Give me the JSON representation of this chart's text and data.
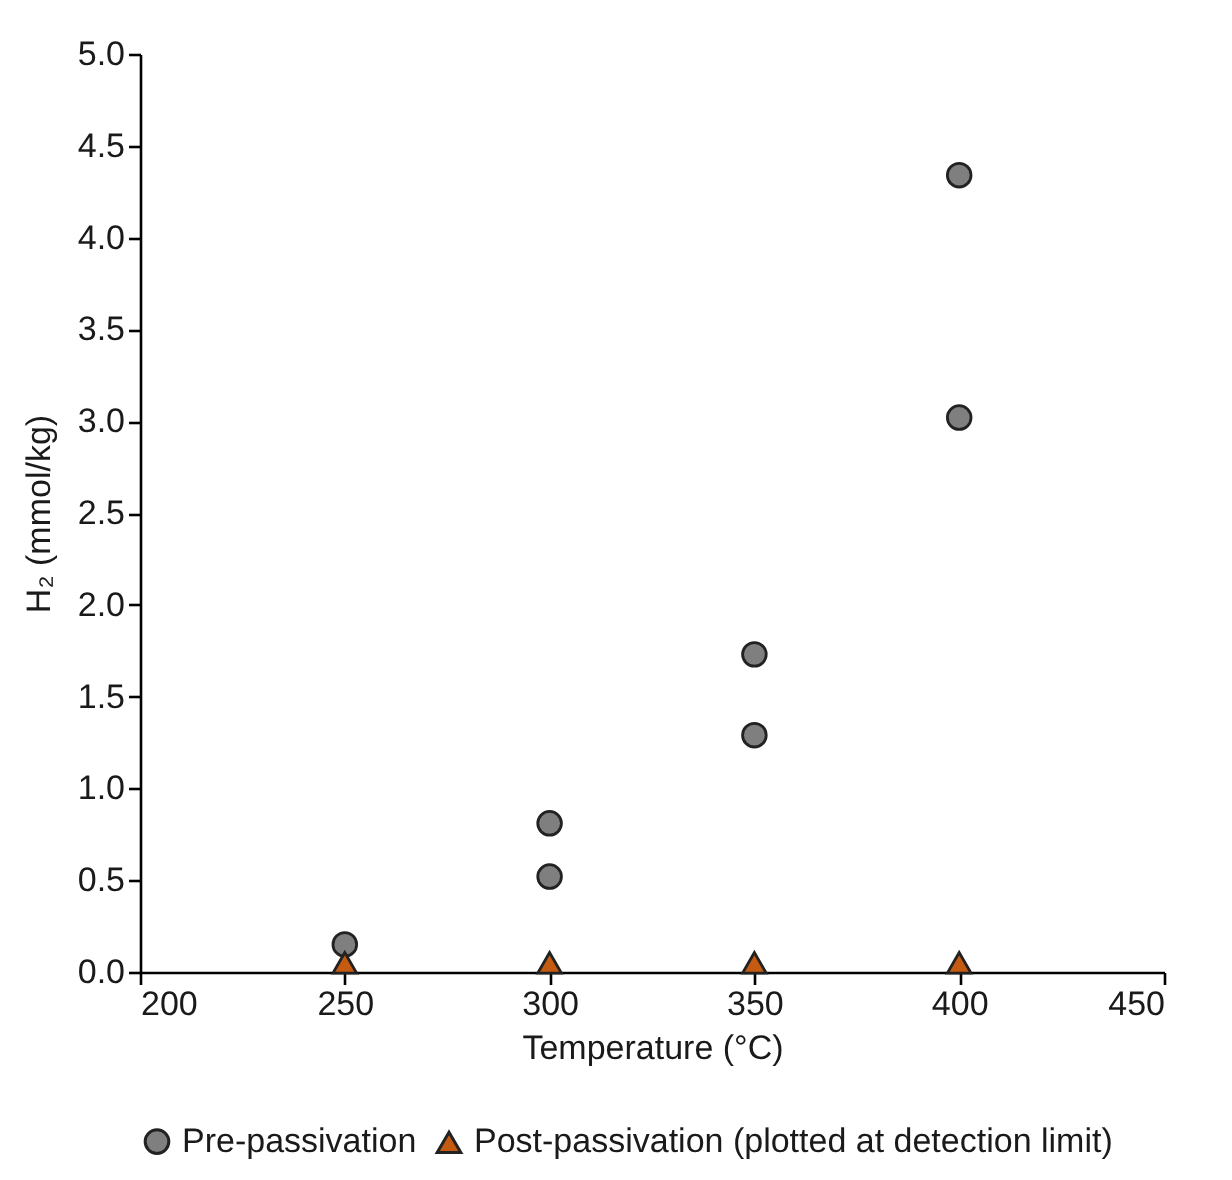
{
  "chart_data": {
    "type": "scatter",
    "xlabel": "Temperature (°C)",
    "ylabel": "H₂ (mmol/kg)",
    "xlim": [
      200,
      450
    ],
    "xticks": [
      200,
      250,
      300,
      350,
      400,
      450
    ],
    "ylim": [
      0,
      5
    ],
    "yticks": [
      {
        "value": 0,
        "label": "0.0"
      },
      {
        "value": 0.5,
        "label": "0.5"
      },
      {
        "value": 1,
        "label": "1.0"
      },
      {
        "value": 1.5,
        "label": "1.5"
      },
      {
        "value": 2,
        "label": "2.0"
      },
      {
        "value": 2.5,
        "label": "2.5"
      },
      {
        "value": 3,
        "label": "3.0"
      },
      {
        "value": 3.5,
        "label": "3.5"
      },
      {
        "value": 4,
        "label": "4.0"
      },
      {
        "value": 4.5,
        "label": "4.5"
      },
      {
        "value": 5,
        "label": "5.0"
      }
    ],
    "grid": false,
    "legend": "bottom",
    "series": [
      {
        "name": "Pre-passivation",
        "color": "#7f7f7f",
        "marker": "circle",
        "x": [
          250,
          300,
          300,
          350,
          350,
          400,
          400
        ],
        "values": [
          0.15,
          0.81,
          0.52,
          1.73,
          1.29,
          4.34,
          3.02
        ]
      },
      {
        "name": "Post-passivation (plotted at detection limit)",
        "color": "#c55a11",
        "marker": "triangle",
        "x": [
          250,
          300,
          350,
          400
        ],
        "values": [
          0.05,
          0.05,
          0.05,
          0.05
        ]
      }
    ]
  }
}
